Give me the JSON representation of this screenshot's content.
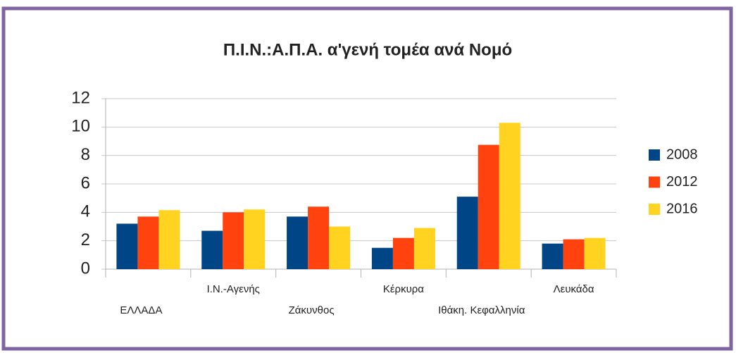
{
  "chart_data": {
    "type": "bar",
    "title": "Π.Ι.Ν.:Α.Π.Α. α'γενή τομέα ανά Νομό",
    "categories": [
      "ΕΛΛΑΔΑ",
      "Ι.Ν.-Αγενής",
      "Ζάκυνθος",
      "Κέρκυρα",
      "Ιθάκη. Κεφαλληνία",
      "Λευκάδα"
    ],
    "series": [
      {
        "name": "2008",
        "color": "#004586",
        "values": [
          3.2,
          2.7,
          3.7,
          1.5,
          5.1,
          1.8
        ]
      },
      {
        "name": "2012",
        "color": "#ff420e",
        "values": [
          3.7,
          4.0,
          4.4,
          2.2,
          8.75,
          2.1
        ]
      },
      {
        "name": "2016",
        "color": "#ffd320",
        "values": [
          4.15,
          4.2,
          3.0,
          2.9,
          10.3,
          2.2
        ]
      }
    ],
    "ylim": [
      0,
      12
    ],
    "yticks": [
      0,
      2,
      4,
      6,
      8,
      10,
      12
    ],
    "grid": true,
    "legend": "right"
  }
}
